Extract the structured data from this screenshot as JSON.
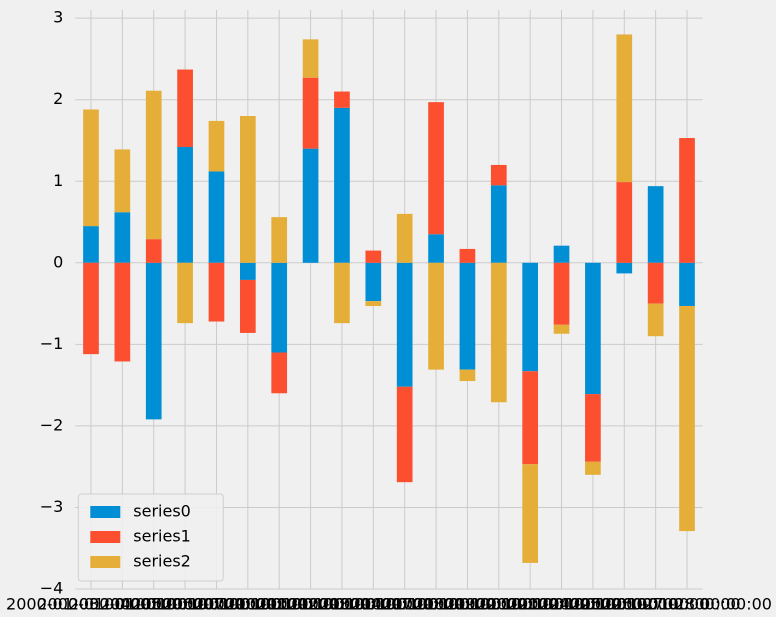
{
  "chart_data": {
    "type": "bar",
    "stacked": true,
    "categories": [
      "2000-01-03 00:00:00",
      "2000-01-04 00:00:00",
      "2000-01-05 00:00:00",
      "2000-01-06 00:00:00",
      "2000-01-07 00:00:00",
      "2000-01-10 00:00:00",
      "2000-01-11 00:00:00",
      "2000-01-12 00:00:00",
      "2000-01-13 00:00:00",
      "2000-01-14 00:00:00",
      "2000-01-17 00:00:00",
      "2000-01-18 00:00:00",
      "2000-01-19 00:00:00",
      "2000-01-20 00:00:00",
      "2000-01-21 00:00:00",
      "2000-01-24 00:00:00",
      "2000-01-25 00:00:00",
      "2000-01-26 00:00:00",
      "2000-01-27 00:00:00",
      "2000-01-28 00:00:00"
    ],
    "series": [
      {
        "name": "series0",
        "color": "#008fd5",
        "values": [
          0.45,
          0.62,
          -1.92,
          1.42,
          1.12,
          -0.21,
          -1.1,
          1.4,
          1.9,
          -0.47,
          -1.52,
          0.35,
          -1.31,
          0.95,
          -1.33,
          0.21,
          -1.61,
          -0.13,
          0.94,
          -0.53
        ]
      },
      {
        "name": "series1",
        "color": "#fc4f30",
        "values": [
          -1.12,
          -1.21,
          0.29,
          0.95,
          -0.72,
          -0.65,
          -0.5,
          0.87,
          0.2,
          0.15,
          -1.17,
          1.62,
          0.17,
          0.25,
          -1.14,
          -0.76,
          -0.83,
          0.99,
          -0.5,
          1.53
        ]
      },
      {
        "name": "series2",
        "color": "#e5ae38",
        "values": [
          1.43,
          0.77,
          1.82,
          -0.74,
          0.62,
          1.8,
          0.56,
          0.47,
          -0.74,
          -0.06,
          0.6,
          -1.31,
          -0.14,
          -1.71,
          -1.21,
          -0.11,
          -0.16,
          1.81,
          -0.4,
          -2.76
        ]
      }
    ],
    "ylim": [
      -4,
      3.1
    ],
    "yticks": [
      {
        "value": -4,
        "label": "−4"
      },
      {
        "value": -3,
        "label": "−3"
      },
      {
        "value": -2,
        "label": "−2"
      },
      {
        "value": -1,
        "label": "−1"
      },
      0,
      1,
      2,
      3
    ],
    "grid": true,
    "legend": "lower left"
  }
}
